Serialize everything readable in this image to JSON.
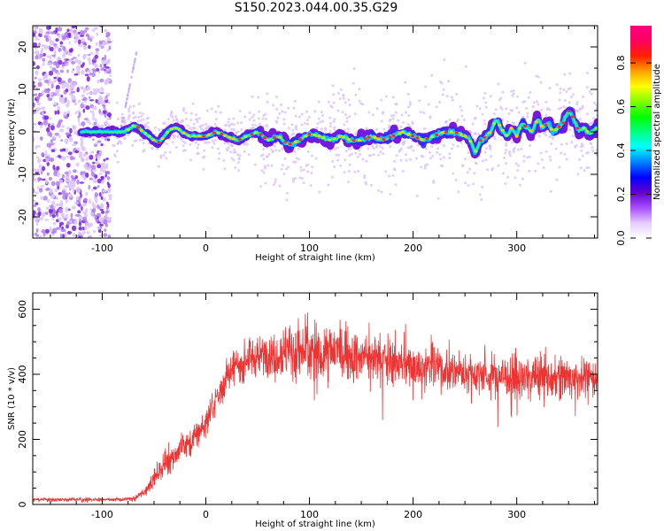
{
  "title": "S150.2023.044.00.35.G29",
  "chart_data": [
    {
      "type": "heatmap",
      "xlabel": "Height of straight line (km)",
      "ylabel": "Frequency (Hz)",
      "xlim": [
        -167,
        378
      ],
      "ylim": [
        -25,
        25
      ],
      "xticks": [
        -100,
        0,
        100,
        200,
        300
      ],
      "yticks": [
        -20,
        -10,
        0,
        10,
        20
      ],
      "grid": false,
      "colorbar": {
        "label": "Normalized spectral amplitude",
        "range": [
          0,
          1
        ],
        "ticks": [
          "0.0",
          "0.2",
          "0.4",
          "0.6",
          "0.8"
        ],
        "colormap": [
          "#ffffff",
          "#e6ccff",
          "#a64dff",
          "#6600cc",
          "#0000ff",
          "#0080ff",
          "#00ffff",
          "#00ff80",
          "#00ff00",
          "#80ff00",
          "#ffff00",
          "#ffa000",
          "#ff2000",
          "#ff0060",
          "#ff0080"
        ]
      },
      "trace": {
        "x": [
          -150,
          -120,
          -100,
          -90,
          -80,
          -75,
          -70,
          -65,
          -60,
          -55,
          -50,
          -45,
          -40,
          -35,
          -30,
          -25,
          -20,
          -15,
          -10,
          -5,
          0,
          10,
          20,
          30,
          40,
          50,
          60,
          70,
          80,
          90,
          100,
          110,
          120,
          130,
          140,
          150,
          160,
          170,
          180,
          190,
          200,
          210,
          220,
          230,
          240,
          250,
          255,
          260,
          265,
          270,
          275,
          280,
          285,
          290,
          295,
          300,
          305,
          310,
          315,
          320,
          325,
          330,
          335,
          340,
          345,
          350,
          355,
          360,
          365,
          370,
          378
        ],
        "y": [
          0,
          0,
          0,
          0,
          0,
          0.5,
          1.5,
          1,
          0,
          -1,
          -2,
          -2.5,
          -1,
          0.5,
          1,
          0.5,
          -0.5,
          -1,
          -1,
          -1,
          -1,
          0,
          -1,
          -2,
          -1,
          0,
          -2,
          -1,
          -3,
          -2,
          -0.5,
          -1,
          -2,
          -1,
          -2,
          -2,
          -1,
          -2,
          -1,
          0,
          -1,
          -2,
          -1,
          0,
          0,
          -1,
          -2,
          -5,
          -2,
          -1,
          0,
          3,
          1,
          -1,
          1,
          -1,
          2,
          1,
          0,
          3,
          1,
          2,
          0,
          1,
          2,
          5,
          3,
          0,
          1,
          -0.5,
          1
        ]
      }
    },
    {
      "type": "line",
      "xlabel": "Height of straight line (km)",
      "ylabel": "SNR (10 * v/v)",
      "xlim": [
        -167,
        378
      ],
      "ylim": [
        0,
        650
      ],
      "xticks": [
        -100,
        0,
        100,
        200,
        300
      ],
      "yticks": [
        0,
        200,
        400,
        600
      ],
      "color": "#ee3333",
      "series": [
        {
          "x": [
            -167,
            -140,
            -120,
            -100,
            -80,
            -70,
            -60,
            -50,
            -40,
            -30,
            -20,
            -10,
            0,
            10,
            20,
            30,
            40,
            50,
            60,
            70,
            80,
            90,
            100,
            110,
            120,
            130,
            140,
            150,
            160,
            170,
            180,
            190,
            200,
            210,
            220,
            230,
            240,
            250,
            260,
            270,
            280,
            290,
            300,
            310,
            320,
            330,
            340,
            350,
            360,
            370,
            378
          ],
          "y": [
            15,
            15,
            15,
            15,
            15,
            18,
            35,
            80,
            125,
            155,
            180,
            210,
            250,
            320,
            390,
            425,
            440,
            455,
            465,
            470,
            470,
            470,
            470,
            470,
            470,
            465,
            460,
            455,
            450,
            445,
            440,
            435,
            430,
            425,
            420,
            415,
            410,
            405,
            400,
            400,
            395,
            395,
            390,
            390,
            390,
            390,
            390,
            390,
            390,
            390,
            390
          ],
          "noise": [
            5,
            5,
            5,
            5,
            5,
            6,
            12,
            25,
            35,
            40,
            45,
            45,
            40,
            40,
            45,
            45,
            50,
            50,
            60,
            70,
            80,
            85,
            90,
            90,
            85,
            80,
            75,
            70,
            70,
            70,
            65,
            65,
            60,
            60,
            60,
            60,
            60,
            60,
            60,
            60,
            60,
            60,
            60,
            60,
            60,
            60,
            55,
            55,
            55,
            55,
            55
          ]
        }
      ]
    }
  ]
}
